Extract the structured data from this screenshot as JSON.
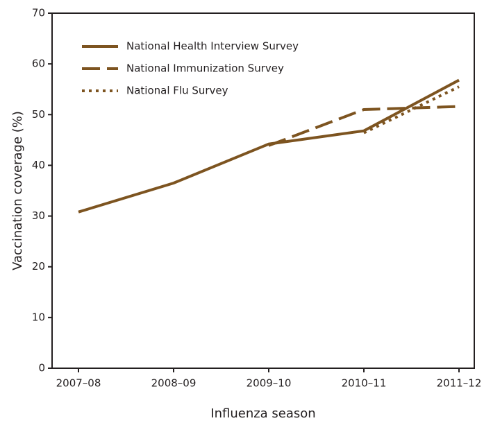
{
  "chart_data": {
    "type": "line",
    "x_label": "Influenza season",
    "y_label": "Vaccination coverage (%)",
    "categories": [
      "2007–08",
      "2008–09",
      "2009–10",
      "2010–11",
      "2011–12"
    ],
    "series": [
      {
        "name": "National Health Interview Survey",
        "color": "#7d5420",
        "style": "solid",
        "values": [
          30.8,
          36.5,
          44.2,
          46.8,
          56.8
        ]
      },
      {
        "name": "National Immunization Survey",
        "color": "#7d5420",
        "style": "dashed",
        "values": [
          null,
          null,
          43.9,
          51.0,
          51.6
        ]
      },
      {
        "name": "National Flu Survey",
        "color": "#7d5420",
        "style": "dotted",
        "values": [
          null,
          null,
          null,
          46.4,
          55.5
        ]
      }
    ],
    "ylim": [
      0,
      70
    ],
    "yticks": [
      0,
      10,
      20,
      30,
      40,
      50,
      60,
      70
    ],
    "legend": "upper left",
    "grid": false
  }
}
